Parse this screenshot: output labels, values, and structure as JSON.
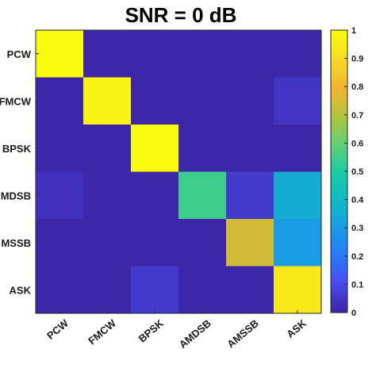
{
  "chart_data": {
    "type": "heatmap",
    "title": "SNR = 0 dB",
    "xlabel": "",
    "ylabel": "",
    "x_categories": [
      "PCW",
      "FMCW",
      "BPSK",
      "AMDSB",
      "AMSSB",
      "ASK"
    ],
    "y_categories": [
      "PCW",
      "FMCW",
      "BPSK",
      "AMDSB",
      "AMSSB",
      "ASK"
    ],
    "y_tick_labels": [
      "PCW",
      "FMCW",
      "BPSK",
      "MDSB",
      "MSSB",
      "ASK"
    ],
    "values": [
      [
        1.0,
        0.0,
        0.0,
        0.0,
        0.0,
        0.0
      ],
      [
        0.0,
        0.98,
        0.0,
        0.0,
        0.0,
        0.04
      ],
      [
        0.0,
        0.0,
        1.0,
        0.0,
        0.0,
        0.0
      ],
      [
        0.03,
        0.0,
        0.0,
        0.55,
        0.05,
        0.35
      ],
      [
        0.0,
        0.0,
        0.0,
        0.0,
        0.75,
        0.3
      ],
      [
        0.0,
        0.0,
        0.05,
        0.0,
        0.0,
        0.95
      ]
    ],
    "colorbar": {
      "colormap": "parula",
      "range": [
        0,
        1
      ],
      "ticks": [
        "0",
        "0.1",
        "0.2",
        "0.3",
        "0.4",
        "0.5",
        "0.6",
        "0.7",
        "0.8",
        "0.9",
        "1"
      ]
    },
    "grid": false
  }
}
